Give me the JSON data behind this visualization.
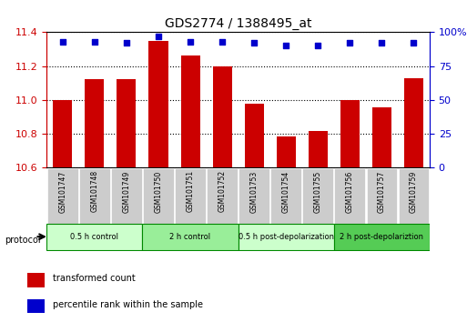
{
  "title": "GDS2774 / 1388495_at",
  "samples": [
    "GSM101747",
    "GSM101748",
    "GSM101749",
    "GSM101750",
    "GSM101751",
    "GSM101752",
    "GSM101753",
    "GSM101754",
    "GSM101755",
    "GSM101756",
    "GSM101757",
    "GSM101759"
  ],
  "bar_values": [
    11.0,
    11.12,
    11.12,
    11.35,
    11.26,
    11.2,
    10.975,
    10.785,
    10.815,
    11.0,
    10.955,
    11.13
  ],
  "percentile_values": [
    93,
    93,
    92,
    97,
    93,
    93,
    92,
    90,
    90,
    92,
    92,
    92
  ],
  "ylim_left": [
    10.6,
    11.4
  ],
  "ylim_right": [
    0,
    100
  ],
  "yticks_left": [
    10.6,
    10.8,
    11.0,
    11.2,
    11.4
  ],
  "yticks_right": [
    0,
    25,
    50,
    75,
    100
  ],
  "bar_color": "#cc0000",
  "dot_color": "#0000cc",
  "grid_color": "#000000",
  "bg_color": "#ffffff",
  "plot_bg": "#ffffff",
  "protocols": [
    {
      "label": "0.5 h control",
      "start": 0,
      "end": 3,
      "color": "#ccffcc"
    },
    {
      "label": "2 h control",
      "start": 3,
      "end": 6,
      "color": "#99ee99"
    },
    {
      "label": "0.5 h post-depolarization",
      "start": 6,
      "end": 9,
      "color": "#ccffcc"
    },
    {
      "label": "2 h post-depolariztion",
      "start": 9,
      "end": 12,
      "color": "#55cc55"
    }
  ],
  "legend_items": [
    {
      "label": "transformed count",
      "color": "#cc0000"
    },
    {
      "label": "percentile rank within the sample",
      "color": "#0000cc"
    }
  ],
  "xlabel_color": "#cc0000",
  "ylabel_right_color": "#0000cc",
  "sample_bg": "#cccccc"
}
